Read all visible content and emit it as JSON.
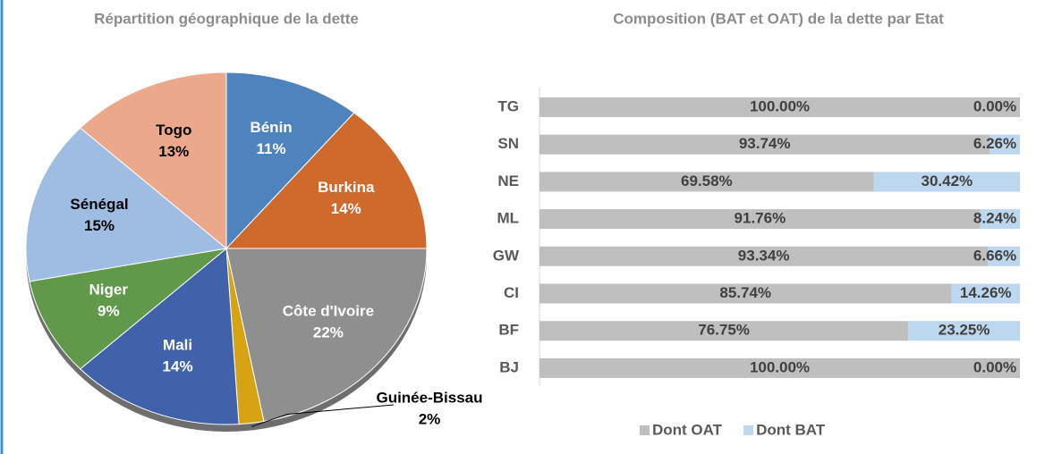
{
  "chart_data": [
    {
      "type": "pie",
      "title": "Répartition géographique de la dette",
      "categories": [
        "Bénin",
        "Burkina",
        "Côte d'Ivoire",
        "Guinée-Bissau",
        "Mali",
        "Niger",
        "Sénégal",
        "Togo"
      ],
      "values": [
        11,
        14,
        22,
        2,
        14,
        9,
        15,
        13
      ],
      "value_labels": [
        "11%",
        "14%",
        "22%",
        "2%",
        "14%",
        "9%",
        "15%",
        "13%"
      ],
      "colors": [
        "#4f83bd",
        "#d0692c",
        "#8f8f8f",
        "#d6a312",
        "#3f62aa",
        "#61994a",
        "#9fbde2",
        "#eca88b"
      ]
    },
    {
      "type": "stacked_barh",
      "title": "Composition (BAT et OAT) de la dette par Etat",
      "categories": [
        "TG",
        "SN",
        "NE",
        "ML",
        "GW",
        "CI",
        "BF",
        "BJ"
      ],
      "xlim": [
        0,
        100
      ],
      "series": [
        {
          "name": "Dont OAT",
          "color": "#bfbfbf",
          "values": [
            100,
            93.74,
            69.58,
            91.76,
            93.34,
            85.74,
            76.75,
            100
          ],
          "value_labels": [
            "100.00%",
            "93.74%",
            "69.58%",
            "91.76%",
            "93.34%",
            "85.74%",
            "76.75%",
            "100.00%"
          ]
        },
        {
          "name": "Dont BAT",
          "color": "#bdd7ee",
          "values": [
            0,
            6.26,
            30.42,
            8.24,
            6.66,
            14.26,
            23.25,
            0
          ],
          "value_labels": [
            "0.00%",
            "6.26%",
            "30.42%",
            "8.24%",
            "6.66%",
            "14.26%",
            "23.25%",
            "0.00%"
          ]
        }
      ],
      "legend": "bottom"
    }
  ]
}
